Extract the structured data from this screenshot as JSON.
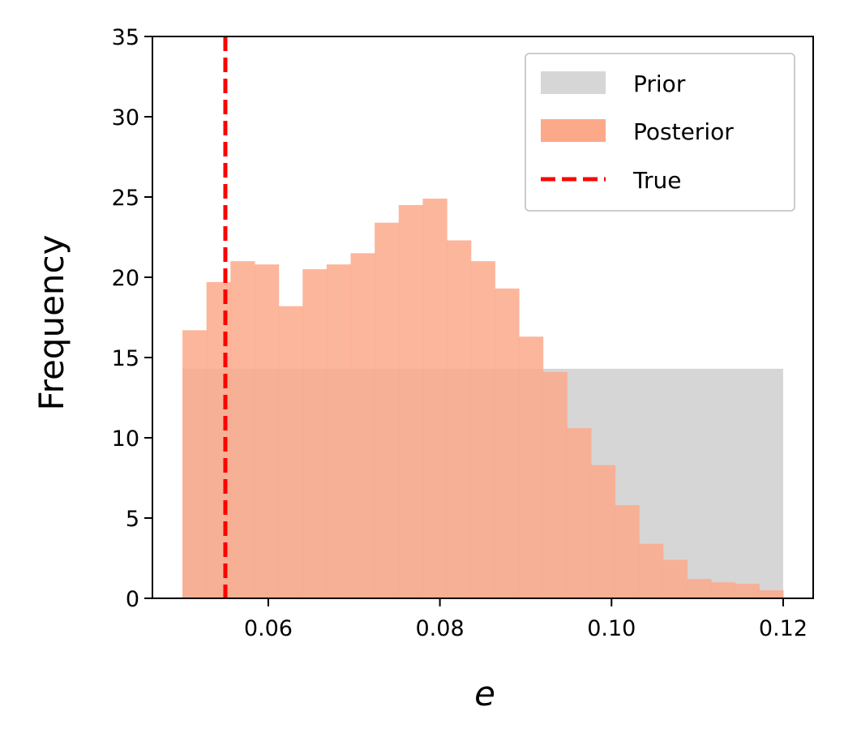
{
  "chart_data": {
    "type": "bar",
    "xlabel": "e",
    "ylabel": "Frequency",
    "xlim": [
      0.0465,
      0.1235
    ],
    "ylim": [
      0,
      35
    ],
    "x_ticks": [
      "0.06",
      "0.08",
      "0.10",
      "0.12"
    ],
    "x_tick_values": [
      0.06,
      0.08,
      0.1,
      0.12
    ],
    "y_ticks": [
      "0",
      "5",
      "10",
      "15",
      "20",
      "25",
      "30",
      "35"
    ],
    "y_tick_values": [
      0,
      5,
      10,
      15,
      20,
      25,
      30,
      35
    ],
    "grid": false,
    "legend_position": "top-right",
    "series": [
      {
        "name": "Prior",
        "color": "#d6d6d6",
        "bins": [
          {
            "x0": 0.05,
            "x1": 0.12,
            "value": 14.3
          }
        ]
      },
      {
        "name": "Posterior",
        "color": "#fca98a",
        "bin_edges": [
          0.05,
          0.0528,
          0.0556,
          0.0584,
          0.0612,
          0.064,
          0.0668,
          0.0696,
          0.0724,
          0.0752,
          0.078,
          0.0808,
          0.0836,
          0.0864,
          0.0892,
          0.092,
          0.0948,
          0.0976,
          0.1004,
          0.1032,
          0.106,
          0.1088,
          0.1116,
          0.1144,
          0.1172,
          0.12
        ],
        "values": [
          16.7,
          19.7,
          21.0,
          20.8,
          18.2,
          20.5,
          20.8,
          21.5,
          23.4,
          24.5,
          24.9,
          22.3,
          21.0,
          19.3,
          16.3,
          14.1,
          10.6,
          8.3,
          5.8,
          3.4,
          2.4,
          1.2,
          1.0,
          0.9,
          0.5
        ]
      }
    ],
    "vlines": [
      {
        "name": "True",
        "x": 0.055,
        "color": "#ff0000",
        "style": "dashed"
      }
    ]
  }
}
